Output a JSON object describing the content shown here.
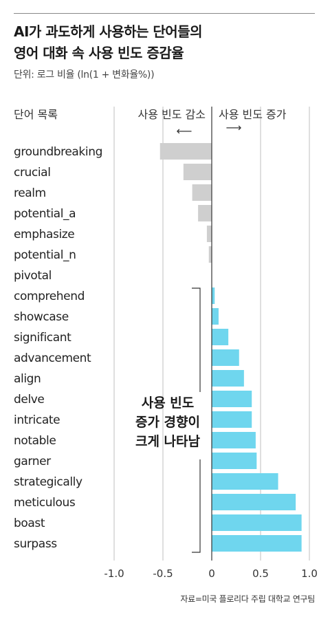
{
  "title_lines": [
    "AI가 과도하게 사용하는 단어들의",
    "영어 대화 속 사용 빈도 증감율"
  ],
  "subtitle": "단위: 로그 비율 (ln(1 + 변화율%))",
  "source": "자료=미국 플로리다 주립 대학교 연구팀",
  "colors": {
    "negative": "#cfcfcf",
    "positive": "#6fd6ee",
    "axis": "#333333",
    "grid": "#bfbfbf"
  },
  "chart_data": {
    "type": "bar",
    "orientation": "horizontal",
    "category_header": "단어 목록",
    "direction_labels": {
      "left": "사용 빈도 감소",
      "right": "사용 빈도 증가",
      "left_arrow": "⟵",
      "right_arrow": "⟶"
    },
    "categories": [
      "groundbreaking",
      "crucial",
      "realm",
      "potential_a",
      "emphasize",
      "potential_n",
      "pivotal",
      "comprehend",
      "showcase",
      "significant",
      "advancement",
      "align",
      "delve",
      "intricate",
      "notable",
      "garner",
      "strategically",
      "meticulous",
      "boast",
      "surpass"
    ],
    "values": [
      -0.53,
      -0.29,
      -0.2,
      -0.14,
      -0.05,
      -0.03,
      0.0,
      0.03,
      0.07,
      0.17,
      0.28,
      0.33,
      0.41,
      0.41,
      0.45,
      0.46,
      0.68,
      0.86,
      0.92,
      0.92
    ],
    "xlim": [
      -1.0,
      1.0
    ],
    "xticks": [
      "-1.0",
      "-0.5",
      "0",
      "0.5",
      "1.0"
    ],
    "xtick_values": [
      -1.0,
      -0.5,
      0,
      0.5,
      1.0
    ],
    "grid": "vertical",
    "annotation": {
      "lines": [
        "사용 빈도",
        "증가 경향이",
        "크게 나타남"
      ],
      "bracket_from": "comprehend",
      "bracket_to": "surpass"
    }
  }
}
